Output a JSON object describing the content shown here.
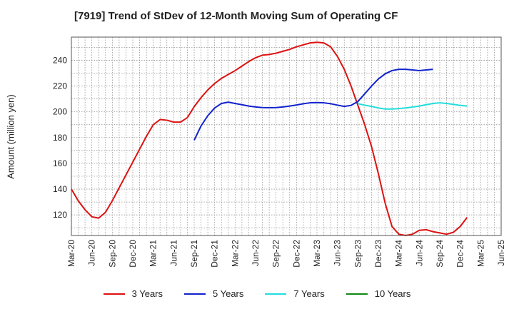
{
  "chart_data": {
    "type": "line",
    "title": "[7919]  Trend of StDev of 12-Month Moving Sum of Operating CF",
    "ylabel": "Amount (million yen)",
    "xlabel": "",
    "ylim": [
      104,
      258
    ],
    "yticks": [
      120,
      140,
      160,
      180,
      200,
      220,
      240
    ],
    "grid": true,
    "legend_position": "bottom",
    "x_tick_labels": [
      "Mar-20",
      "Jun-20",
      "Sep-20",
      "Dec-20",
      "Mar-21",
      "Jun-21",
      "Sep-21",
      "Dec-21",
      "Mar-22",
      "Jun-22",
      "Sep-22",
      "Dec-22",
      "Mar-23",
      "Jun-23",
      "Sep-23",
      "Dec-23",
      "Mar-24",
      "Jun-24",
      "Sep-24",
      "Dec-24",
      "Mar-25",
      "Jun-25"
    ],
    "x_months": [
      "Mar-20",
      "Apr-20",
      "May-20",
      "Jun-20",
      "Jul-20",
      "Aug-20",
      "Sep-20",
      "Oct-20",
      "Nov-20",
      "Dec-20",
      "Jan-21",
      "Feb-21",
      "Mar-21",
      "Apr-21",
      "May-21",
      "Jun-21",
      "Jul-21",
      "Aug-21",
      "Sep-21",
      "Oct-21",
      "Nov-21",
      "Dec-21",
      "Jan-22",
      "Feb-22",
      "Mar-22",
      "Apr-22",
      "May-22",
      "Jun-22",
      "Jul-22",
      "Aug-22",
      "Sep-22",
      "Oct-22",
      "Nov-22",
      "Dec-22",
      "Jan-23",
      "Feb-23",
      "Mar-23",
      "Apr-23",
      "May-23",
      "Jun-23",
      "Jul-23",
      "Aug-23",
      "Sep-23",
      "Oct-23",
      "Nov-23",
      "Dec-23",
      "Jan-24",
      "Feb-24",
      "Mar-24",
      "Apr-24",
      "May-24",
      "Jun-24",
      "Jul-24",
      "Aug-24",
      "Sep-24",
      "Oct-24",
      "Nov-24",
      "Dec-24",
      "Jan-25",
      "Feb-25",
      "Mar-25",
      "Apr-25",
      "May-25",
      "Jun-25"
    ],
    "series": [
      {
        "name": "3 Years",
        "color": "#dd1111",
        "start": "Mar-20",
        "values": [
          140,
          131,
          124,
          118.5,
          117.5,
          122,
          131,
          141,
          151,
          161,
          171,
          181,
          190,
          194,
          193.5,
          192,
          192,
          195.5,
          204,
          211,
          217,
          222,
          226,
          229,
          232,
          235.5,
          239,
          242,
          244,
          244.5,
          245.5,
          247,
          248.5,
          250.5,
          252,
          253.5,
          254,
          253.5,
          250.5,
          243,
          233,
          220,
          205,
          190,
          173,
          152,
          129,
          111,
          105,
          103,
          105,
          108,
          108.5,
          107,
          106,
          105,
          106.5,
          111,
          118
        ]
      },
      {
        "name": "5 Years",
        "color": "#1122cc",
        "start": "Sep-21",
        "values": [
          178,
          189,
          197,
          203,
          206.5,
          207.5,
          206.5,
          205.5,
          204.5,
          203.8,
          203.3,
          203.2,
          203.3,
          203.8,
          204.5,
          205.3,
          206.3,
          207,
          207.2,
          207,
          206.3,
          205.2,
          204.2,
          205,
          208,
          214,
          220,
          225.5,
          229.5,
          232,
          233,
          233,
          232.5,
          232,
          232.5,
          233
        ]
      }
    ],
    "series_overlap_base": {
      "name": "7 Years",
      "color": "#22dddd",
      "start": "Sep-23",
      "values": [
        206.3,
        205.2,
        204.2,
        203,
        202.2,
        202.2,
        202.5,
        203,
        203.7,
        204.5,
        205.5,
        206.5,
        207,
        206.5,
        205.8,
        205,
        204.5
      ]
    },
    "series_empty": {
      "name": "10 Years",
      "color": "#118811",
      "start": "",
      "values": []
    }
  }
}
